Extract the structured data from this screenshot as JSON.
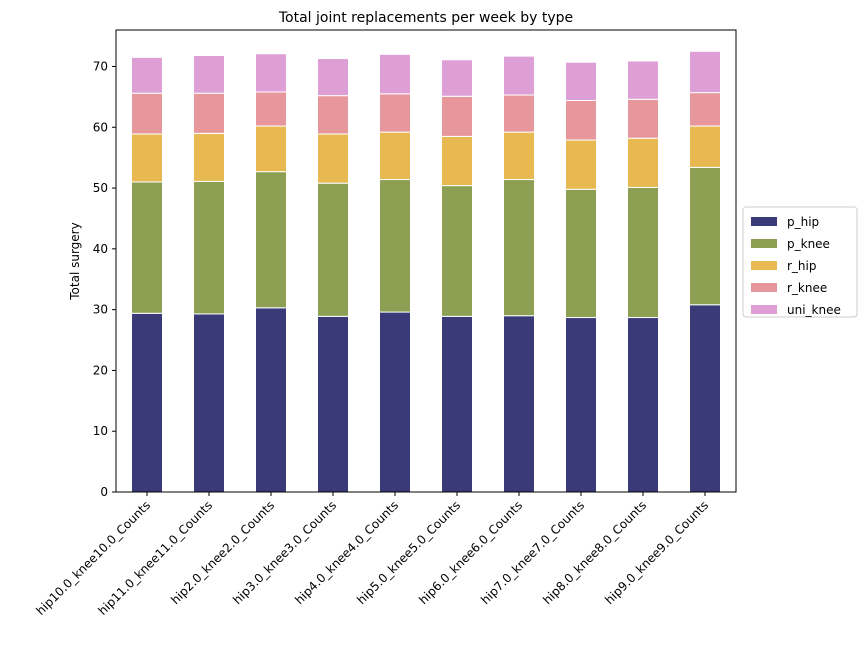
{
  "chart_data": {
    "type": "bar",
    "stacked": true,
    "title": "Total joint replacements per week by type",
    "xlabel": "",
    "ylabel": "Total surgery",
    "ylim": [
      0,
      76
    ],
    "yticks": [
      0,
      10,
      20,
      30,
      40,
      50,
      60,
      70
    ],
    "categories": [
      "hip10.0_knee10.0_Counts",
      "hip11.0_knee11.0_Counts",
      "hip2.0_knee2.0_Counts",
      "hip3.0_knee3.0_Counts",
      "hip4.0_knee4.0_Counts",
      "hip5.0_knee5.0_Counts",
      "hip6.0_knee6.0_Counts",
      "hip7.0_knee7.0_Counts",
      "hip8.0_knee8.0_Counts",
      "hip9.0_knee9.0_Counts"
    ],
    "series": [
      {
        "name": "p_hip",
        "color": "#393a77",
        "values": [
          29.4,
          29.3,
          30.3,
          28.9,
          29.6,
          28.9,
          29.0,
          28.7,
          28.7,
          30.8
        ]
      },
      {
        "name": "p_knee",
        "color": "#8c9f52",
        "values": [
          21.6,
          21.8,
          22.4,
          21.9,
          21.8,
          21.5,
          22.4,
          21.1,
          21.4,
          22.6
        ]
      },
      {
        "name": "r_hip",
        "color": "#e7b950",
        "values": [
          7.9,
          7.9,
          7.5,
          8.1,
          7.8,
          8.1,
          7.8,
          8.1,
          8.1,
          6.8
        ]
      },
      {
        "name": "r_knee",
        "color": "#e7969b",
        "values": [
          6.7,
          6.6,
          5.6,
          6.3,
          6.3,
          6.6,
          6.1,
          6.5,
          6.4,
          5.5
        ]
      },
      {
        "name": "uni_knee",
        "color": "#dd9fd6",
        "values": [
          5.9,
          6.2,
          6.3,
          6.1,
          6.5,
          6.0,
          6.4,
          6.3,
          6.3,
          6.8
        ]
      }
    ],
    "legend_position": "center-right",
    "grid": false
  }
}
